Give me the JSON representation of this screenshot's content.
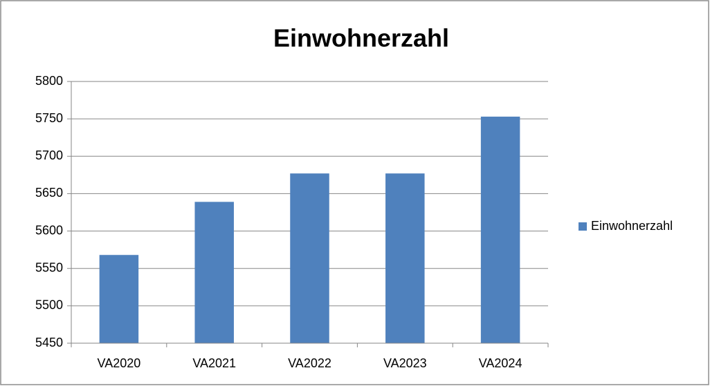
{
  "chart_data": {
    "type": "bar",
    "title": "Einwohnerzahl",
    "categories": [
      "VA2020",
      "VA2021",
      "VA2022",
      "VA2023",
      "VA2024"
    ],
    "series": [
      {
        "name": "Einwohnerzahl",
        "color": "#4f81bd",
        "values": [
          5568,
          5639,
          5677,
          5677,
          5753
        ]
      }
    ],
    "ylim": [
      5450,
      5800
    ],
    "yticks": [
      5450,
      5500,
      5550,
      5600,
      5650,
      5700,
      5750,
      5800
    ],
    "grid": true,
    "legend": "right"
  }
}
